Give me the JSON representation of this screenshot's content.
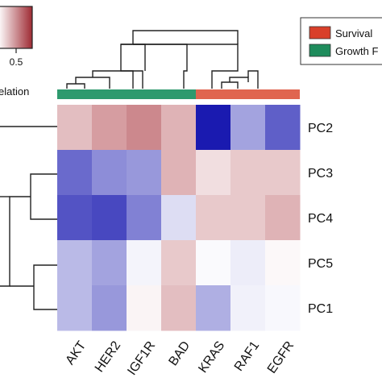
{
  "chart_data": {
    "type": "heatmap",
    "title": "",
    "columns": [
      "AKT",
      "HER2",
      "IGF1R",
      "BAD",
      "KRAS",
      "RAF1",
      "EGFR"
    ],
    "rows": [
      "PC2",
      "PC3",
      "PC4",
      "PC5",
      "PC1"
    ],
    "values": [
      [
        0.3,
        0.45,
        0.55,
        0.35,
        -1.0,
        -0.4,
        -0.7
      ],
      [
        -0.65,
        -0.5,
        -0.45,
        0.35,
        0.15,
        0.25,
        0.25
      ],
      [
        -0.75,
        -0.8,
        -0.55,
        -0.15,
        0.25,
        0.25,
        0.35
      ],
      [
        -0.3,
        -0.4,
        -0.05,
        0.25,
        -0.02,
        -0.08,
        0.03
      ],
      [
        -0.3,
        -0.45,
        0.05,
        0.3,
        -0.35,
        -0.06,
        -0.03
      ]
    ],
    "column_groups": [
      {
        "name": "Growth",
        "color": "#2e9a6e",
        "columns": [
          "AKT",
          "HER2",
          "IGF1R",
          "BAD"
        ]
      },
      {
        "name": "Survival",
        "color": "#e0654f",
        "columns": [
          "KRAS",
          "RAF1",
          "EGFR"
        ]
      }
    ],
    "legend": {
      "entries": [
        {
          "label": "Survival",
          "color": "#d9402a"
        },
        {
          "label": "Growth F",
          "color": "#1f8c5c"
        }
      ],
      "placement": "top-right"
    },
    "colorbar": {
      "tick_label": "0.5",
      "title_fragment": "elation",
      "colors": [
        "#ffffff",
        "#9e2a33"
      ]
    },
    "color_scale": {
      "negative": "#1a1ab0",
      "zero": "#ffffff",
      "positive": "#a3262f",
      "range": [
        -1,
        1
      ]
    }
  }
}
